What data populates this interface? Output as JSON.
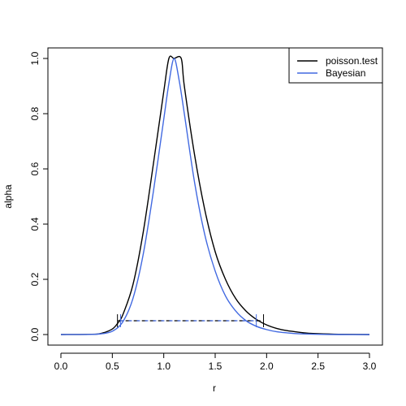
{
  "chart_data": {
    "type": "line",
    "title": "",
    "xlabel": "r",
    "ylabel": "alpha",
    "xlim": [
      0,
      3
    ],
    "ylim": [
      0,
      1
    ],
    "x_ticks": [
      "0.0",
      "0.5",
      "1.0",
      "1.5",
      "2.0",
      "2.5",
      "3.0"
    ],
    "y_ticks": [
      "0.0",
      "0.2",
      "0.4",
      "0.6",
      "0.8",
      "1.0"
    ],
    "legend_position": "top-right",
    "series": [
      {
        "name": "poisson.test",
        "color": "#000000",
        "x": [
          0.0,
          0.3,
          0.4,
          0.5,
          0.55,
          0.6,
          0.7,
          0.8,
          0.9,
          1.0,
          1.05,
          1.1,
          1.17,
          1.2,
          1.3,
          1.4,
          1.5,
          1.6,
          1.7,
          1.8,
          1.9,
          2.0,
          2.1,
          2.2,
          2.3,
          2.4,
          2.5,
          2.7,
          3.0
        ],
        "y": [
          0.0,
          0.001,
          0.005,
          0.02,
          0.04,
          0.07,
          0.18,
          0.37,
          0.62,
          0.88,
          1.0,
          1.0,
          1.0,
          0.9,
          0.65,
          0.45,
          0.3,
          0.2,
          0.13,
          0.085,
          0.055,
          0.035,
          0.022,
          0.014,
          0.009,
          0.005,
          0.003,
          0.001,
          0.0
        ]
      },
      {
        "name": "Bayesian",
        "color": "#4169e1",
        "x": [
          0.0,
          0.3,
          0.4,
          0.5,
          0.6,
          0.7,
          0.8,
          0.9,
          1.0,
          1.05,
          1.1,
          1.15,
          1.2,
          1.3,
          1.4,
          1.5,
          1.6,
          1.7,
          1.8,
          1.9,
          2.0,
          2.1,
          2.2,
          2.3,
          2.5,
          2.7,
          3.0
        ],
        "y": [
          0.0,
          0.0005,
          0.003,
          0.012,
          0.045,
          0.13,
          0.29,
          0.52,
          0.78,
          0.91,
          1.0,
          0.92,
          0.8,
          0.55,
          0.36,
          0.23,
          0.14,
          0.085,
          0.05,
          0.03,
          0.018,
          0.01,
          0.006,
          0.003,
          0.001,
          0.0,
          0.0
        ]
      }
    ],
    "intervals": [
      {
        "series": "poisson.test",
        "x_start": 0.55,
        "x_end": 1.97,
        "y": 0.05,
        "color": "#000000"
      },
      {
        "series": "Bayesian",
        "x_start": 0.58,
        "x_end": 1.9,
        "y": 0.05,
        "color": "#4169e1"
      }
    ]
  }
}
